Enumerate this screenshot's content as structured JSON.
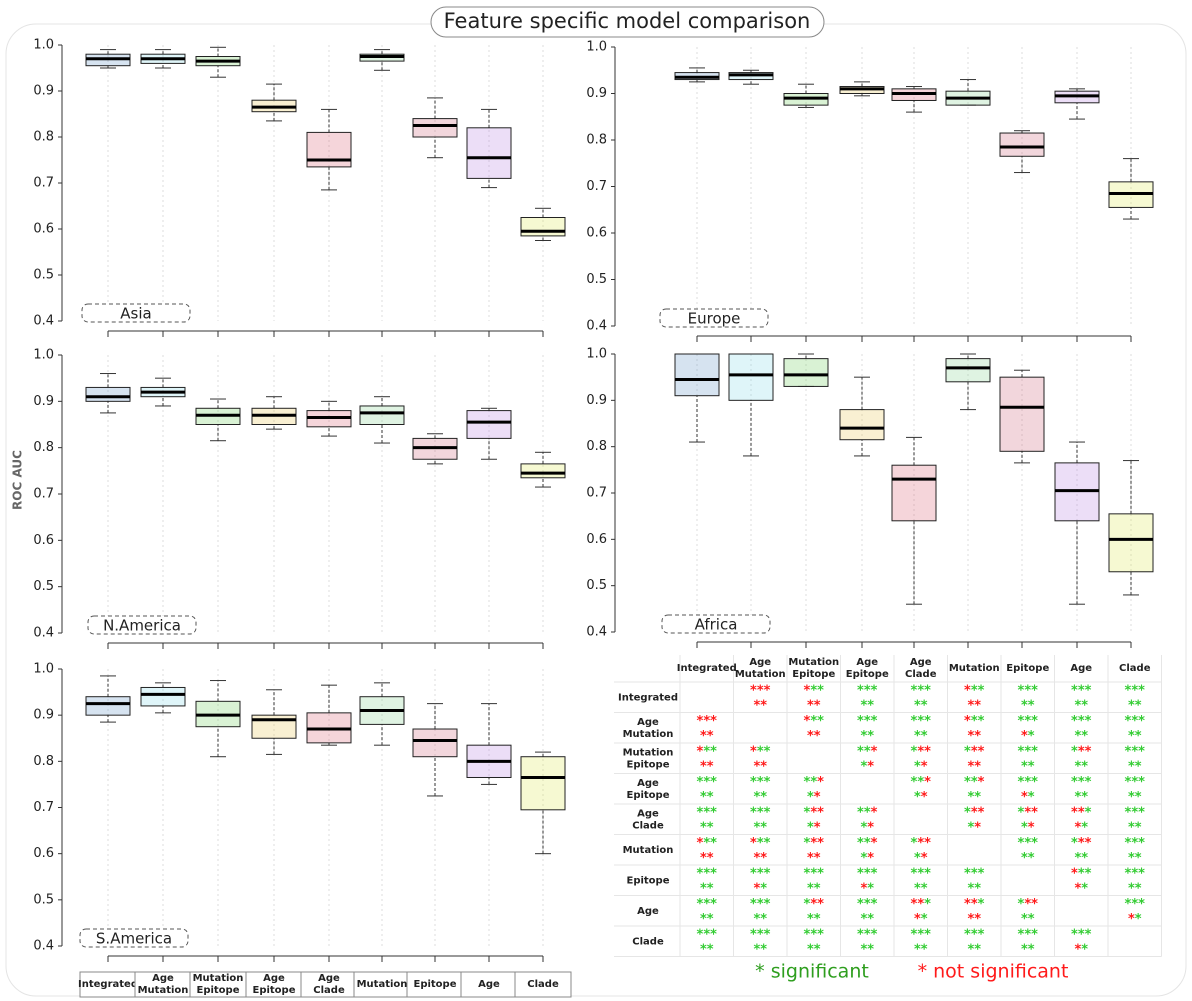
{
  "title": "Feature specific model comparison",
  "y_label": "ROC AUC",
  "models": [
    [
      "Integrated"
    ],
    [
      "Age",
      "Mutation"
    ],
    [
      "Mutation",
      "Epitope"
    ],
    [
      "Age",
      "Epitope"
    ],
    [
      "Age",
      "Clade"
    ],
    [
      "Mutation"
    ],
    [
      "Epitope"
    ],
    [
      "Age"
    ],
    [
      "Clade"
    ]
  ],
  "colors": [
    "#5b8fc4",
    "#7fd6e8",
    "#66cc55",
    "#e6c34a",
    "#d9566a",
    "#7ed08a",
    "#cc5c74",
    "#b57be0",
    "#dbe84a"
  ],
  "grid": true,
  "chart_data": [
    {
      "type": "box",
      "label": "Asia",
      "ylim": [
        0.4,
        1
      ],
      "yticks": [
        0.4,
        0.5,
        0.6,
        0.7,
        0.8,
        0.9,
        {
          "value": 1,
          "label": "1.0"
        }
      ],
      "boxes": [
        [
          0.95,
          0.955,
          0.97,
          0.98,
          0.99
        ],
        [
          0.95,
          0.96,
          0.97,
          0.98,
          0.99
        ],
        [
          0.93,
          0.955,
          0.965,
          0.975,
          0.995
        ],
        [
          0.835,
          0.855,
          0.865,
          0.88,
          0.915
        ],
        [
          0.685,
          0.735,
          0.75,
          0.81,
          0.86
        ],
        [
          0.945,
          0.965,
          0.975,
          0.98,
          0.99
        ],
        [
          0.755,
          0.8,
          0.825,
          0.84,
          0.885
        ],
        [
          0.69,
          0.71,
          0.755,
          0.82,
          0.86
        ],
        [
          0.575,
          0.585,
          0.595,
          0.625,
          0.645
        ]
      ]
    },
    {
      "type": "box",
      "label": "Europe",
      "ylim": [
        0.4,
        1
      ],
      "yticks": [
        0.4,
        0.5,
        0.6,
        0.7,
        0.8,
        0.9,
        {
          "value": 1,
          "label": "1.0"
        }
      ],
      "boxes": [
        [
          0.925,
          0.93,
          0.935,
          0.945,
          0.955
        ],
        [
          0.92,
          0.93,
          0.94,
          0.945,
          0.95
        ],
        [
          0.87,
          0.875,
          0.89,
          0.9,
          0.92
        ],
        [
          0.895,
          0.9,
          0.91,
          0.915,
          0.925
        ],
        [
          0.86,
          0.885,
          0.9,
          0.91,
          0.915
        ],
        [
          0.875,
          0.875,
          0.89,
          0.905,
          0.93
        ],
        [
          0.73,
          0.765,
          0.785,
          0.815,
          0.82
        ],
        [
          0.845,
          0.88,
          0.895,
          0.905,
          0.91
        ],
        [
          0.63,
          0.655,
          0.685,
          0.71,
          0.76
        ]
      ]
    },
    {
      "type": "box",
      "label": "N.America",
      "ylim": [
        0.4,
        1
      ],
      "yticks": [
        0.4,
        0.5,
        0.6,
        0.7,
        0.8,
        0.9,
        {
          "value": 1,
          "label": "1.0"
        }
      ],
      "boxes": [
        [
          0.875,
          0.9,
          0.91,
          0.93,
          0.96
        ],
        [
          0.89,
          0.91,
          0.92,
          0.93,
          0.95
        ],
        [
          0.815,
          0.85,
          0.87,
          0.885,
          0.905
        ],
        [
          0.84,
          0.85,
          0.87,
          0.885,
          0.91
        ],
        [
          0.825,
          0.845,
          0.865,
          0.88,
          0.9
        ],
        [
          0.81,
          0.85,
          0.875,
          0.89,
          0.91
        ],
        [
          0.765,
          0.775,
          0.8,
          0.82,
          0.83
        ],
        [
          0.775,
          0.82,
          0.855,
          0.88,
          0.885
        ],
        [
          0.715,
          0.735,
          0.745,
          0.765,
          0.79
        ]
      ]
    },
    {
      "type": "box",
      "label": "Africa",
      "ylim": [
        0.4,
        1
      ],
      "yticks": [
        0.4,
        0.5,
        0.6,
        0.7,
        0.8,
        0.9,
        {
          "value": 1,
          "label": "1.0"
        }
      ],
      "boxes": [
        [
          0.81,
          0.91,
          0.945,
          1,
          1
        ],
        [
          0.78,
          0.9,
          0.955,
          1,
          1
        ],
        [
          0.93,
          0.93,
          0.955,
          0.99,
          1
        ],
        [
          0.78,
          0.815,
          0.84,
          0.88,
          0.95
        ],
        [
          0.46,
          0.64,
          0.73,
          0.76,
          0.82
        ],
        [
          0.88,
          0.94,
          0.97,
          0.99,
          1
        ],
        [
          0.765,
          0.79,
          0.885,
          0.95,
          0.965
        ],
        [
          0.46,
          0.64,
          0.705,
          0.765,
          0.81
        ],
        [
          0.48,
          0.53,
          0.6,
          0.655,
          0.77
        ]
      ]
    },
    {
      "type": "box",
      "label": "S.America",
      "ylim": [
        0.4,
        1
      ],
      "yticks": [
        0.4,
        0.5,
        0.6,
        0.7,
        0.8,
        0.9,
        {
          "value": 1,
          "label": "1.0"
        }
      ],
      "boxes": [
        [
          0.885,
          0.9,
          0.925,
          0.94,
          0.985
        ],
        [
          0.905,
          0.92,
          0.945,
          0.96,
          0.97
        ],
        [
          0.81,
          0.875,
          0.9,
          0.93,
          0.975
        ],
        [
          0.815,
          0.85,
          0.89,
          0.9,
          0.955
        ],
        [
          0.835,
          0.84,
          0.87,
          0.905,
          0.965
        ],
        [
          0.835,
          0.88,
          0.91,
          0.94,
          0.97
        ],
        [
          0.725,
          0.81,
          0.845,
          0.87,
          0.925
        ],
        [
          0.75,
          0.765,
          0.8,
          0.835,
          0.925
        ],
        [
          0.6,
          0.695,
          0.765,
          0.81,
          0.82
        ]
      ]
    }
  ],
  "table": {
    "star": "*",
    "star_colors": {
      "g": "#33cc33",
      "r": "#ff1a1a"
    },
    "cells": [
      [
        null,
        [
          "rrr",
          "rr"
        ],
        [
          "rgg",
          "rr"
        ],
        [
          "ggg",
          "gg"
        ],
        [
          "ggg",
          "gg"
        ],
        [
          "rgg",
          "rr"
        ],
        [
          "ggg",
          "gg"
        ],
        [
          "ggg",
          "gg"
        ],
        [
          "ggg",
          "gg"
        ]
      ],
      [
        [
          "rrr",
          "rr"
        ],
        null,
        [
          "rgg",
          "rr"
        ],
        [
          "ggg",
          "gg"
        ],
        [
          "ggg",
          "gg"
        ],
        [
          "rgg",
          "rr"
        ],
        [
          "ggg",
          "rg"
        ],
        [
          "ggg",
          "gg"
        ],
        [
          "ggg",
          "gg"
        ]
      ],
      [
        [
          "rgg",
          "rr"
        ],
        [
          "rgg",
          "rr"
        ],
        null,
        [
          "ggr",
          "gr"
        ],
        [
          "grr",
          "gr"
        ],
        [
          "grr",
          "rr"
        ],
        [
          "ggg",
          "gg"
        ],
        [
          "grr",
          "gg"
        ],
        [
          "ggg",
          "gg"
        ]
      ],
      [
        [
          "ggg",
          "gg"
        ],
        [
          "ggg",
          "gg"
        ],
        [
          "ggr",
          "gr"
        ],
        null,
        [
          "ggr",
          "gr"
        ],
        [
          "ggr",
          "gg"
        ],
        [
          "ggg",
          "rg"
        ],
        [
          "ggg",
          "gg"
        ],
        [
          "ggg",
          "gg"
        ]
      ],
      [
        [
          "ggg",
          "gg"
        ],
        [
          "ggg",
          "gg"
        ],
        [
          "grr",
          "gr"
        ],
        [
          "ggr",
          "gr"
        ],
        null,
        [
          "grr",
          "gr"
        ],
        [
          "grr",
          "gr"
        ],
        [
          "rrg",
          "rg"
        ],
        [
          "ggg",
          "gg"
        ]
      ],
      [
        [
          "rgg",
          "rr"
        ],
        [
          "rgg",
          "rr"
        ],
        [
          "grr",
          "rr"
        ],
        [
          "ggr",
          "gr"
        ],
        [
          "grr",
          "gr"
        ],
        null,
        [
          "ggg",
          "gg"
        ],
        [
          "grr",
          "gg"
        ],
        [
          "ggg",
          "gg"
        ]
      ],
      [
        [
          "ggg",
          "gg"
        ],
        [
          "ggg",
          "rg"
        ],
        [
          "ggg",
          "gg"
        ],
        [
          "ggg",
          "rg"
        ],
        [
          "ggg",
          "gg"
        ],
        [
          "ggg",
          "gg"
        ],
        null,
        [
          "rgg",
          "rg"
        ],
        [
          "ggg",
          "gg"
        ]
      ],
      [
        [
          "ggg",
          "gg"
        ],
        [
          "ggg",
          "gg"
        ],
        [
          "grr",
          "gg"
        ],
        [
          "ggg",
          "gg"
        ],
        [
          "rrg",
          "rg"
        ],
        [
          "rrg",
          "rr"
        ],
        [
          "grr",
          "gg"
        ],
        null,
        [
          "ggg",
          "rg"
        ]
      ],
      [
        [
          "ggg",
          "gg"
        ],
        [
          "ggg",
          "gg"
        ],
        [
          "ggg",
          "gg"
        ],
        [
          "ggg",
          "gg"
        ],
        [
          "ggg",
          "gg"
        ],
        [
          "ggg",
          "gg"
        ],
        [
          "ggg",
          "gg"
        ],
        [
          "ggg",
          "rg"
        ],
        null
      ]
    ]
  },
  "legend": [
    {
      "text": "* significant",
      "color": "#2e9e1e"
    },
    {
      "text": "* not significant",
      "color": "#ff1a1a"
    }
  ]
}
